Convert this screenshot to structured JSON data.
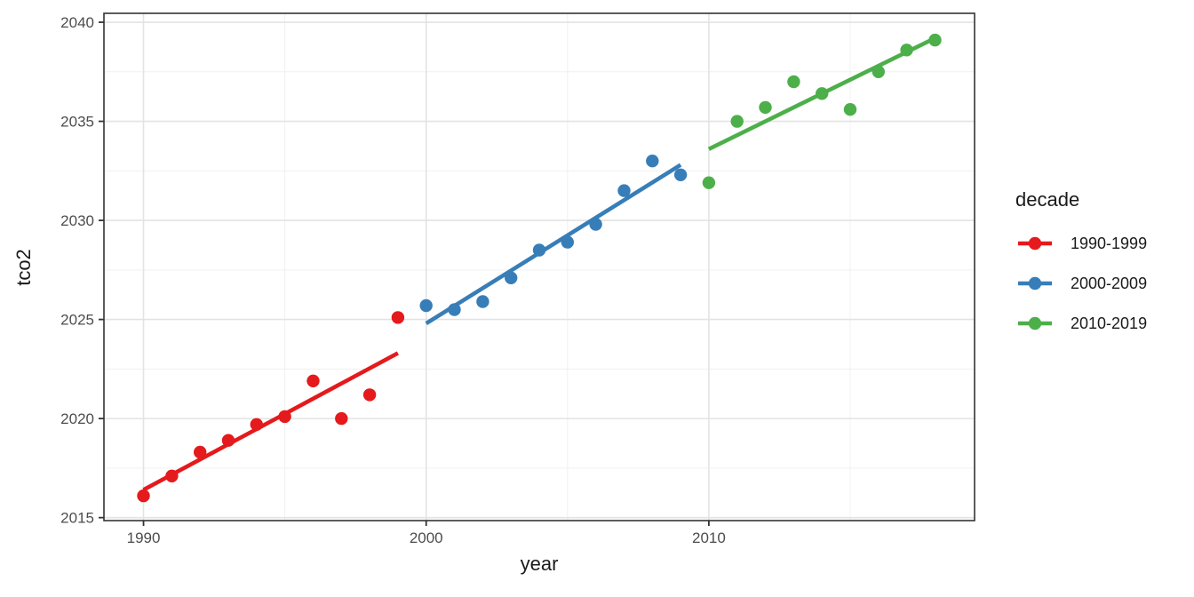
{
  "chart_data": {
    "type": "scatter",
    "title": "",
    "xlabel": "year",
    "ylabel": "tco2",
    "xlim": [
      1988.6,
      2019.4
    ],
    "ylim": [
      2014.85,
      2040.45
    ],
    "x_ticks": [
      1990,
      2000,
      2010
    ],
    "x_minor_gridlines": [
      1995,
      2005,
      2015
    ],
    "y_ticks": [
      2015,
      2020,
      2025,
      2030,
      2035,
      2040
    ],
    "y_minor_gridlines": [
      2017.5,
      2022.5,
      2027.5,
      2032.5,
      2037.5
    ],
    "grid": true,
    "legend": {
      "title": "decade",
      "position": "right"
    },
    "series": [
      {
        "name": "1990-1999",
        "color": "#E41A1C",
        "x": [
          1990,
          1991,
          1992,
          1993,
          1994,
          1995,
          1996,
          1997,
          1998,
          1999
        ],
        "y": [
          2016.1,
          2017.1,
          2018.3,
          2018.9,
          2019.7,
          2020.1,
          2021.9,
          2020.0,
          2021.2,
          2025.1
        ],
        "trend": {
          "x1": 1990.0,
          "y1": 2016.4,
          "x2": 1999.0,
          "y2": 2023.3
        }
      },
      {
        "name": "2000-2009",
        "color": "#377EB8",
        "x": [
          2000,
          2001,
          2002,
          2003,
          2004,
          2005,
          2006,
          2007,
          2008,
          2009
        ],
        "y": [
          2025.7,
          2025.5,
          2025.9,
          2027.1,
          2028.5,
          2028.9,
          2029.8,
          2031.5,
          2033.0,
          2032.3
        ],
        "trend": {
          "x1": 2000.0,
          "y1": 2024.8,
          "x2": 2009.0,
          "y2": 2032.8
        }
      },
      {
        "name": "2010-2019",
        "color": "#4DAF4A",
        "x": [
          2010,
          2011,
          2012,
          2013,
          2014,
          2015,
          2016,
          2017,
          2018
        ],
        "y": [
          2031.9,
          2035.0,
          2035.7,
          2037.0,
          2036.4,
          2035.6,
          2037.5,
          2038.6,
          2039.1
        ],
        "trend": {
          "x1": 2010.0,
          "y1": 2033.6,
          "x2": 2018.0,
          "y2": 2039.2
        }
      }
    ]
  },
  "theme": {
    "background": "#FFFFFF",
    "panel_background": "#FFFFFF",
    "panel_border": "#333333",
    "grid_major": "#E3E3E3",
    "grid_minor": "#F0F0F0",
    "tick_mark": "#333333",
    "tick_label_color": "#4D4D4D",
    "title_color": "#1A1A1A"
  }
}
